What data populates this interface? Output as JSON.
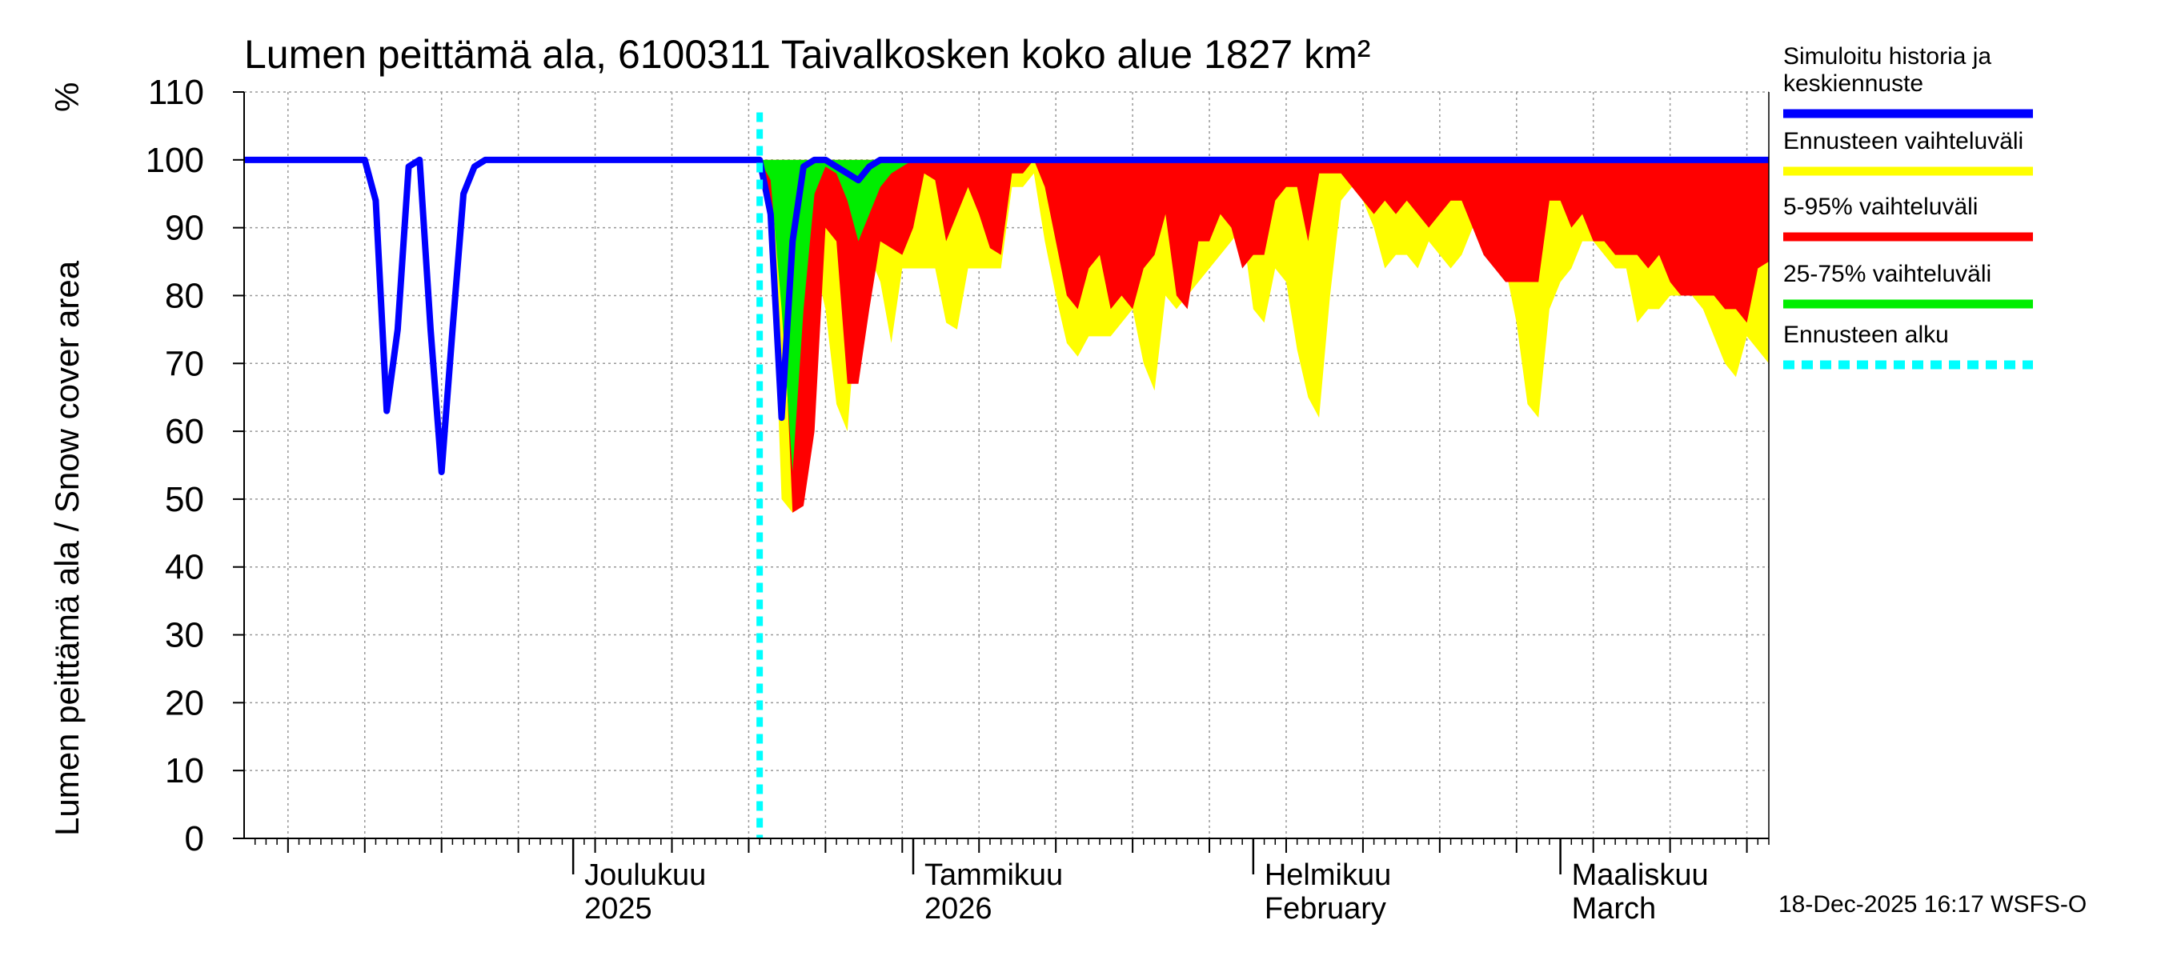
{
  "chart_data": {
    "type": "area",
    "title": "Lumen peittämä ala, 6100311 Taivalkosken koko alue 1827 km²",
    "ylabel": "Lumen peittämä ala / Snow cover area",
    "yunit": "%",
    "ylim": [
      0,
      110
    ],
    "yticks": [
      0,
      10,
      20,
      30,
      40,
      50,
      60,
      70,
      80,
      90,
      100,
      110
    ],
    "x_unit": "days since 2025-11-01",
    "xlim": [
      0,
      139
    ],
    "grid": true,
    "month_labels": [
      {
        "line1": "Joulukuu",
        "line2": "2025",
        "day": 30
      },
      {
        "line1": "Tammikuu",
        "line2": "2026",
        "day": 61
      },
      {
        "line1": "Helmikuu",
        "line2": "February",
        "day": 92
      },
      {
        "line1": "Maaliskuu",
        "line2": "March",
        "day": 120
      }
    ],
    "forecast_start_day": 47,
    "legend": [
      {
        "label_lines": [
          "Simuloitu historia ja",
          "keskiennuste"
        ],
        "color": "#0000ff",
        "style": "solid"
      },
      {
        "label_lines": [
          "Ennusteen vaihteluväli"
        ],
        "color": "#ffff00",
        "style": "solid"
      },
      {
        "label_lines": [
          "5-95% vaihteluväli"
        ],
        "color": "#ff0000",
        "style": "solid"
      },
      {
        "label_lines": [
          "25-75% vaihteluväli"
        ],
        "color": "#00ee00",
        "style": "solid"
      },
      {
        "label_lines": [
          "Ennusteen alku"
        ],
        "color": "#00ffff",
        "style": "dashed"
      }
    ],
    "series": [
      {
        "name": "Ennusteen vaihteluväli",
        "kind": "band",
        "color": "#ffff00",
        "x": [
          47,
          48,
          49,
          50,
          51,
          52,
          53,
          54,
          55,
          56,
          57,
          58,
          59,
          60,
          61,
          62,
          63,
          64,
          65,
          66,
          67,
          68,
          69,
          70,
          71,
          72,
          73,
          74,
          75,
          76,
          77,
          78,
          79,
          80,
          81,
          82,
          83,
          84,
          85,
          86,
          87,
          88,
          89,
          90,
          91,
          92,
          93,
          94,
          95,
          96,
          97,
          98,
          99,
          100,
          101,
          102,
          103,
          104,
          105,
          106,
          107,
          108,
          109,
          110,
          111,
          112,
          113,
          114,
          115,
          116,
          117,
          118,
          119,
          120,
          121,
          122,
          123,
          124,
          125,
          126,
          127,
          128,
          129,
          130,
          131,
          132,
          133,
          134,
          135,
          136,
          137,
          138,
          139
        ],
        "low": [
          100,
          94,
          50,
          48,
          56,
          85,
          78,
          64,
          60,
          80,
          86,
          82,
          73,
          84,
          84,
          84,
          84,
          76,
          75,
          84,
          84,
          84,
          84,
          96,
          96,
          98,
          88,
          80,
          73,
          71,
          74,
          74,
          74,
          76,
          78,
          70,
          66,
          80,
          78,
          80,
          82,
          84,
          86,
          88,
          90,
          78,
          76,
          84,
          82,
          72,
          65,
          62,
          80,
          94,
          96,
          94,
          90,
          84,
          86,
          86,
          84,
          88,
          86,
          84,
          86,
          90,
          92,
          92,
          84,
          76,
          64,
          62,
          78,
          82,
          84,
          88,
          88,
          86,
          84,
          84,
          76,
          78,
          78,
          80,
          80,
          80,
          78,
          74,
          70,
          68,
          74,
          72,
          70
        ],
        "high": [
          100,
          100,
          100,
          100,
          100,
          100,
          100,
          100,
          100,
          100,
          100,
          100,
          100,
          100,
          100,
          100,
          100,
          100,
          100,
          100,
          100,
          100,
          100,
          100,
          100,
          100,
          100,
          100,
          100,
          100,
          100,
          100,
          100,
          100,
          100,
          100,
          100,
          100,
          100,
          100,
          100,
          100,
          100,
          100,
          100,
          100,
          100,
          100,
          100,
          100,
          100,
          100,
          100,
          100,
          100,
          100,
          100,
          100,
          100,
          100,
          100,
          100,
          100,
          100,
          100,
          100,
          100,
          100,
          100,
          100,
          100,
          100,
          100,
          100,
          100,
          100,
          100,
          100,
          100,
          100,
          100,
          100,
          100,
          100,
          100,
          100,
          100,
          100,
          100,
          100,
          100,
          100,
          100
        ]
      },
      {
        "name": "5-95% vaihteluväli",
        "kind": "band",
        "color": "#ff0000",
        "x": [
          47,
          48,
          49,
          50,
          51,
          52,
          53,
          54,
          55,
          56,
          57,
          58,
          59,
          60,
          61,
          62,
          63,
          64,
          65,
          66,
          67,
          68,
          69,
          70,
          71,
          72,
          73,
          74,
          75,
          76,
          77,
          78,
          79,
          80,
          81,
          82,
          83,
          84,
          85,
          86,
          87,
          88,
          89,
          90,
          91,
          92,
          93,
          94,
          95,
          96,
          97,
          98,
          99,
          100,
          101,
          102,
          103,
          104,
          105,
          106,
          107,
          108,
          109,
          110,
          111,
          112,
          113,
          114,
          115,
          116,
          117,
          118,
          119,
          120,
          121,
          122,
          123,
          124,
          125,
          126,
          127,
          128,
          129,
          130,
          131,
          132,
          133,
          134,
          135,
          136,
          137,
          138,
          139
        ],
        "low": [
          100,
          94,
          85,
          48,
          49,
          60,
          90,
          88,
          67,
          67,
          78,
          88,
          87,
          86,
          90,
          98,
          97,
          88,
          92,
          96,
          92,
          87,
          86,
          98,
          98,
          100,
          96,
          88,
          80,
          78,
          84,
          86,
          78,
          80,
          78,
          84,
          86,
          92,
          80,
          78,
          88,
          88,
          92,
          90,
          84,
          86,
          86,
          94,
          96,
          96,
          88,
          98,
          98,
          98,
          96,
          94,
          92,
          94,
          92,
          94,
          92,
          90,
          92,
          94,
          94,
          90,
          86,
          84,
          82,
          82,
          82,
          82,
          94,
          94,
          90,
          92,
          88,
          88,
          86,
          86,
          86,
          84,
          86,
          82,
          80,
          80,
          80,
          80,
          78,
          78,
          76,
          84,
          85
        ],
        "high": [
          100,
          100,
          100,
          100,
          100,
          100,
          100,
          100,
          100,
          100,
          100,
          100,
          100,
          100,
          100,
          100,
          100,
          100,
          100,
          100,
          100,
          100,
          100,
          100,
          100,
          100,
          100,
          100,
          100,
          100,
          100,
          100,
          100,
          100,
          100,
          100,
          100,
          100,
          100,
          100,
          100,
          100,
          100,
          100,
          100,
          100,
          100,
          100,
          100,
          100,
          100,
          100,
          100,
          100,
          100,
          100,
          100,
          100,
          100,
          100,
          100,
          100,
          100,
          100,
          100,
          100,
          100,
          100,
          100,
          100,
          100,
          100,
          100,
          100,
          100,
          100,
          100,
          100,
          100,
          100,
          100,
          100,
          100,
          100,
          100,
          100,
          100,
          100,
          100,
          100,
          100,
          100,
          100
        ]
      },
      {
        "name": "25-75% vaihteluväli",
        "kind": "band",
        "color": "#00ee00",
        "x": [
          47,
          48,
          49,
          50,
          51,
          52,
          53,
          54,
          55,
          56,
          57,
          58,
          59,
          60,
          61,
          62
        ],
        "low": [
          100,
          97,
          78,
          54,
          78,
          95,
          99,
          98,
          94,
          88,
          92,
          96,
          98,
          99,
          100,
          100
        ],
        "high": [
          100,
          100,
          100,
          100,
          100,
          100,
          100,
          100,
          100,
          100,
          100,
          100,
          100,
          100,
          100,
          100
        ]
      },
      {
        "name": "Simuloitu historia ja keskiennuste",
        "kind": "line",
        "color": "#0000ff",
        "x": [
          0,
          2,
          4,
          6,
          8,
          9,
          10,
          11,
          12,
          13,
          14,
          15,
          16,
          17,
          18,
          19,
          20,
          21,
          22,
          23,
          24,
          25,
          26,
          27,
          28,
          30,
          32,
          34,
          36,
          38,
          40,
          42,
          44,
          46,
          47,
          48,
          49,
          50,
          51,
          52,
          53,
          54,
          55,
          56,
          57,
          58,
          59,
          60,
          62,
          64,
          66,
          70,
          80,
          90,
          100,
          110,
          120,
          130,
          139
        ],
        "values": [
          100,
          100,
          100,
          100,
          100,
          100,
          100,
          100,
          94,
          63,
          75,
          99,
          100,
          75,
          54,
          75,
          95,
          99,
          100,
          100,
          100,
          100,
          100,
          100,
          100,
          100,
          100,
          100,
          100,
          100,
          100,
          100,
          100,
          100,
          100,
          92,
          62,
          88,
          99,
          100,
          100,
          99,
          98,
          97,
          99,
          100,
          100,
          100,
          100,
          100,
          100,
          100,
          100,
          100,
          100,
          100,
          100,
          100,
          100
        ]
      }
    ]
  },
  "footer": {
    "timestamp": "18-Dec-2025 16:17 WSFS-O"
  }
}
